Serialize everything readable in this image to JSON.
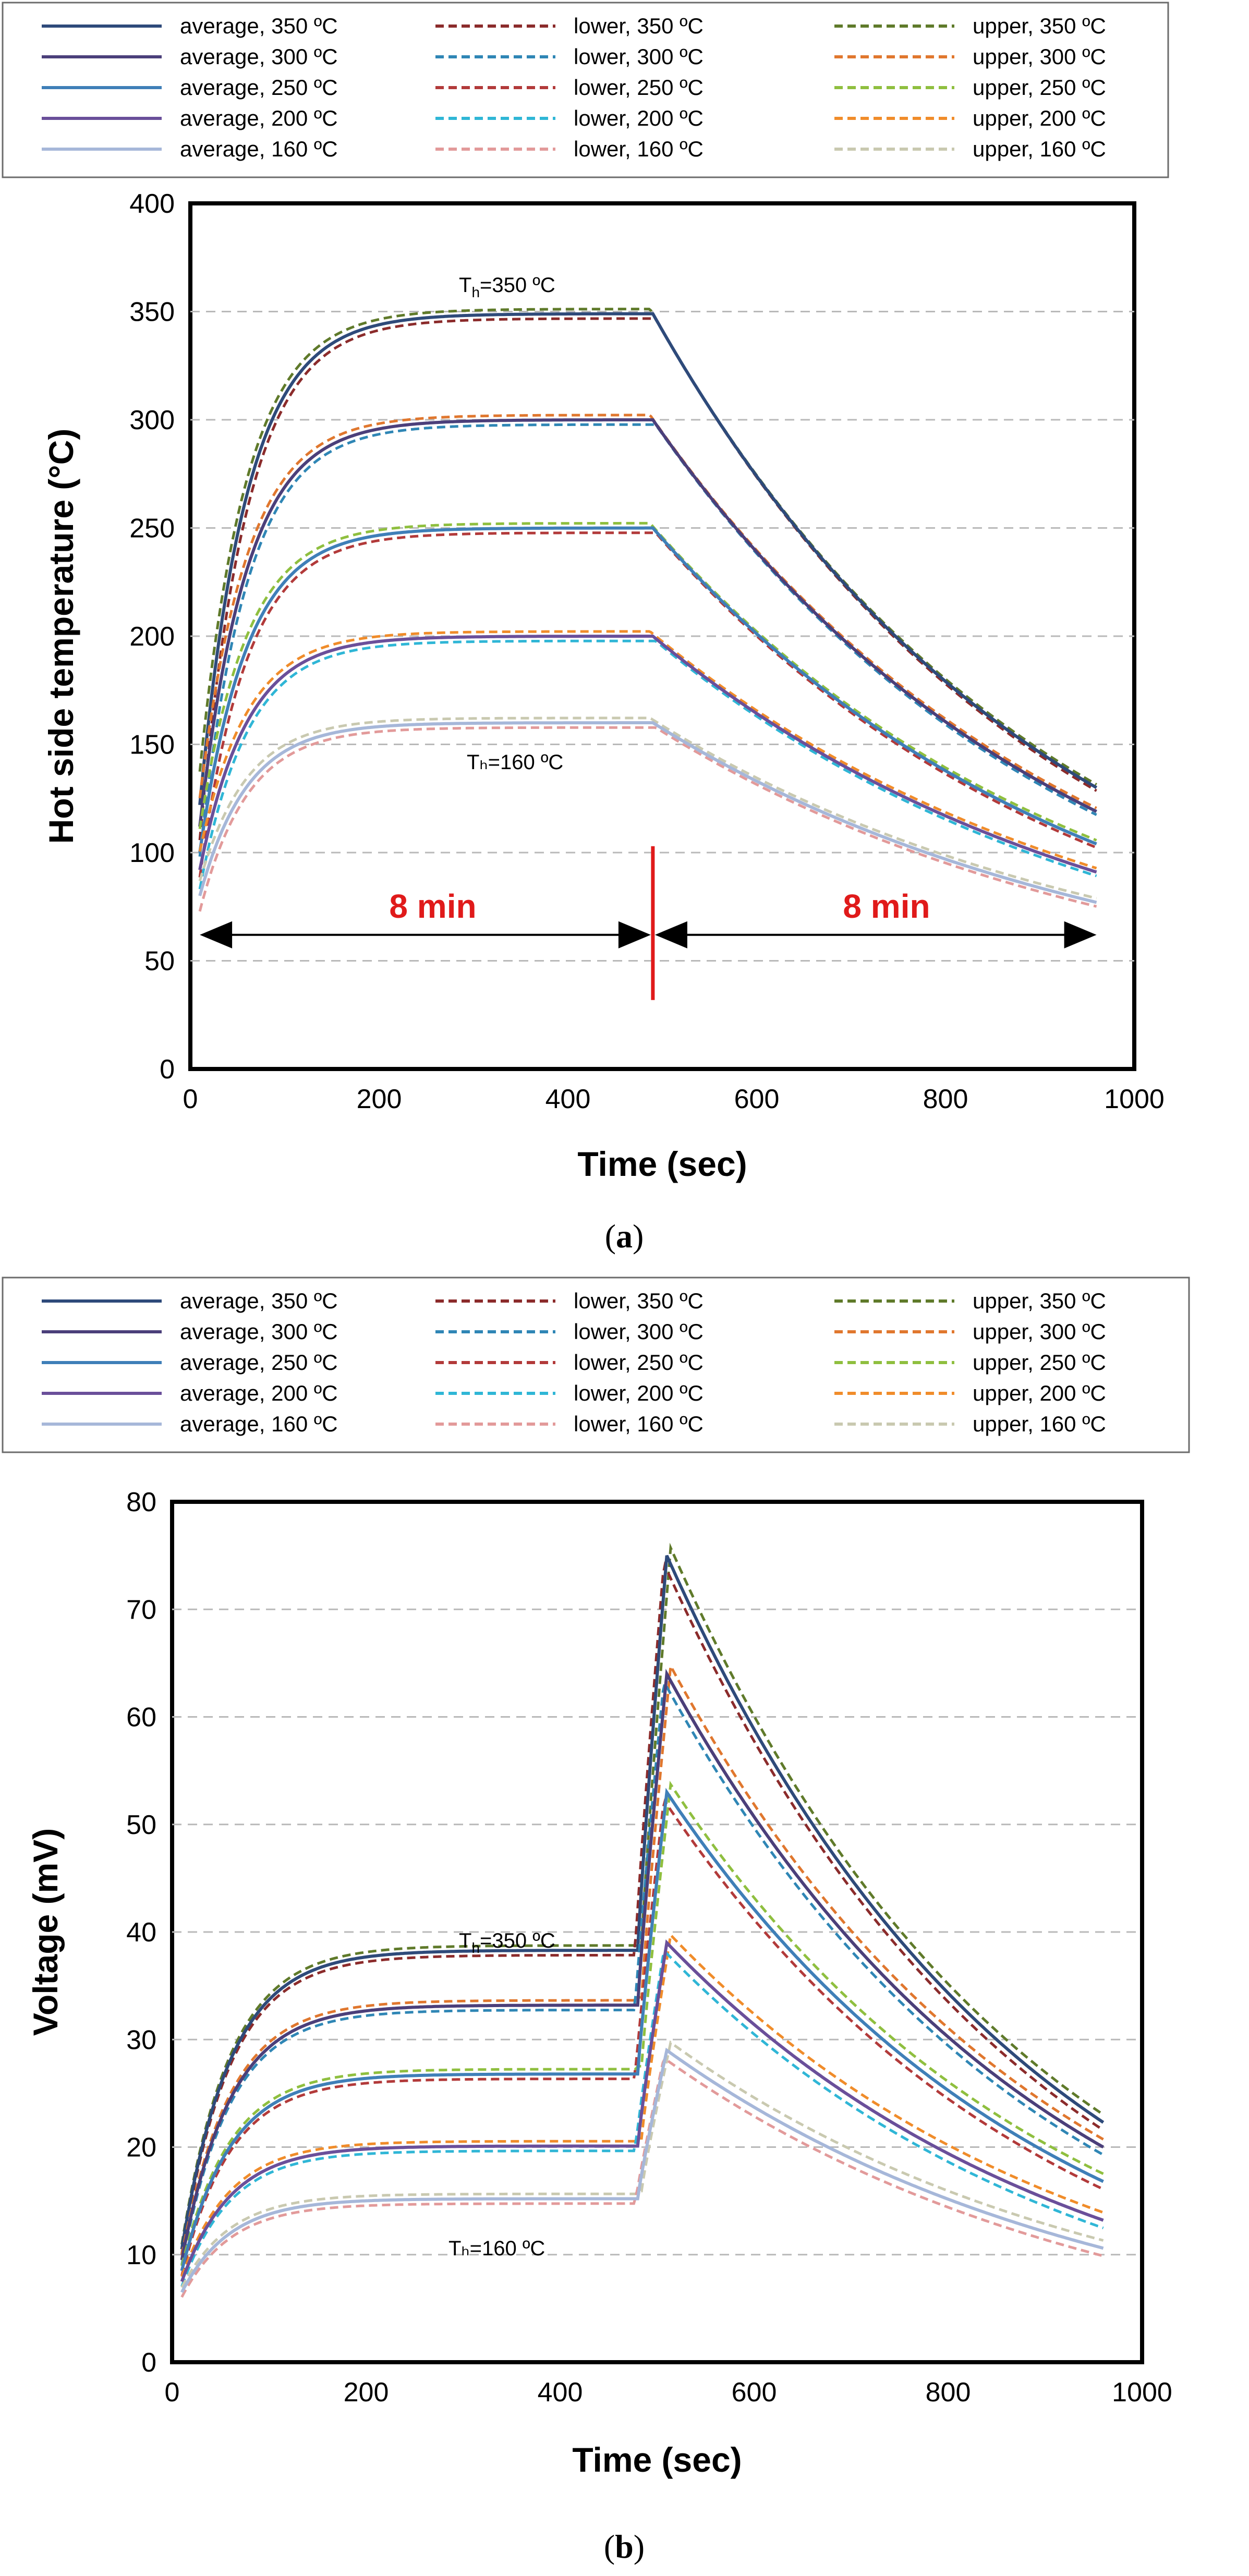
{
  "chart_data": [
    {
      "type": "line",
      "panel": "a",
      "caption": "a",
      "xlabel": "Time (sec)",
      "ylabel": "Hot side temperature (°C)",
      "xlim": [
        0,
        1000
      ],
      "ylim": [
        0,
        400
      ],
      "xticks": [
        "0",
        "200",
        "400",
        "600",
        "800",
        "1000"
      ],
      "yticks": [
        "0",
        "50",
        "100",
        "150",
        "200",
        "250",
        "300",
        "350",
        "400"
      ],
      "grid": "horizontal dashed",
      "legend_position": "top",
      "legend": [
        "average, 350 ºC",
        "lower, 350 ºC",
        "upper, 350 ºC",
        "average, 300 ºC",
        "lower, 300 ºC",
        "upper, 300 ºC",
        "average, 250 ºC",
        "lower, 250 ºC",
        "upper, 250 ºC",
        "average, 200 ºC",
        "lower, 200 ºC",
        "upper, 200 ºC",
        "average, 160 ºC",
        "lower, 160 ºC",
        "upper, 160 ºC"
      ],
      "annotations": {
        "top_label_main": "T",
        "top_label_sub": "h",
        "top_label_rest": "=350 ºC",
        "bottom_label": "Tₕ=160 ºC",
        "span_left": "8 min",
        "span_right": "8 min",
        "divider_time": 490,
        "span_start": 10,
        "span_end": 960,
        "span_y": 62
      },
      "model": {
        "t_start": 10,
        "t_switch": 490,
        "t_end": 960,
        "heating_tau": 50,
        "cooling_tau": 420,
        "ambient": 25,
        "series": [
          {
            "setpoint": 350,
            "initial": 122,
            "value_at_switch": 349,
            "final": 130
          },
          {
            "setpoint": 300,
            "initial": 112,
            "value_at_switch": 300,
            "final": 119
          },
          {
            "setpoint": 250,
            "initial": 100,
            "value_at_switch": 250,
            "final": 104
          },
          {
            "setpoint": 200,
            "initial": 92,
            "value_at_switch": 200,
            "final": 91
          },
          {
            "setpoint": 160,
            "initial": 80,
            "value_at_switch": 160,
            "final": 77
          }
        ]
      }
    },
    {
      "type": "line",
      "panel": "b",
      "caption": "b",
      "xlabel": "Time (sec)",
      "ylabel": "Voltage (mV)",
      "xlim": [
        0,
        1000
      ],
      "ylim": [
        0,
        80
      ],
      "xticks": [
        "0",
        "200",
        "400",
        "600",
        "800",
        "1000"
      ],
      "yticks": [
        "0",
        "10",
        "20",
        "30",
        "40",
        "50",
        "60",
        "70",
        "80"
      ],
      "grid": "horizontal dashed",
      "legend_position": "top",
      "legend": [
        "average, 350 ºC",
        "lower, 350 ºC",
        "upper, 350 ºC",
        "average, 300 ºC",
        "lower, 300 ºC",
        "upper, 300 ºC",
        "average, 250 ºC",
        "lower, 250 ºC",
        "upper, 250 ºC",
        "average, 200 ºC",
        "lower, 200 ºC",
        "upper, 200 ºC",
        "average, 160 ºC",
        "lower, 160 ºC",
        "upper, 160 ºC"
      ],
      "annotations": {
        "top_label_main": "T",
        "top_label_sub": "h",
        "top_label_rest": "=350 ºC",
        "bottom_label": "Tₕ=160 ºC"
      },
      "model": {
        "t_start": 10,
        "t_step": 480,
        "t_peak": 510,
        "t_end": 960,
        "heating_tau": 50,
        "decay_tau": 330,
        "series": [
          {
            "setpoint": 350,
            "initial": 10.5,
            "plateau": 38.3,
            "peak": 75,
            "final": 22.3
          },
          {
            "setpoint": 300,
            "initial": 9.5,
            "plateau": 33.2,
            "peak": 64,
            "final": 20
          },
          {
            "setpoint": 250,
            "initial": 8.5,
            "plateau": 26.8,
            "peak": 53,
            "final": 16.8
          },
          {
            "setpoint": 200,
            "initial": 7.5,
            "plateau": 20.1,
            "peak": 39,
            "final": 13.2
          },
          {
            "setpoint": 160,
            "initial": 6.5,
            "plateau": 15.2,
            "peak": 29,
            "final": 10.6
          }
        ]
      }
    }
  ],
  "colors": {
    "average": [
      "#2e4a7a",
      "#4b3f7a",
      "#3f7fb8",
      "#6a4f9a",
      "#a6b7d9"
    ],
    "lower": [
      "#8b2b2b",
      "#2f86b5",
      "#b23a3a",
      "#2fb6d6",
      "#e29a9a"
    ],
    "upper": [
      "#5f7a2a",
      "#e0772e",
      "#8fbf3f",
      "#f08c2a",
      "#c9c9b0"
    ],
    "grid": "#b9b9b9",
    "divider": "#e01a1a",
    "span_label": "#e01a1a"
  }
}
